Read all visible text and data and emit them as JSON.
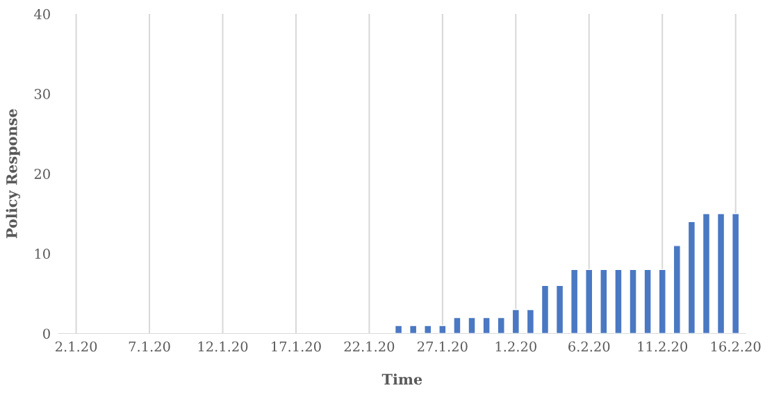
{
  "chart_data": {
    "type": "bar",
    "xlabel": "Time",
    "ylabel": "Policy Response",
    "categories": [
      "2.1.20",
      null,
      null,
      null,
      null,
      "7.1.20",
      null,
      null,
      null,
      null,
      "12.1.20",
      null,
      null,
      null,
      null,
      "17.1.20",
      null,
      null,
      null,
      null,
      "22.1.20",
      null,
      null,
      null,
      null,
      "27.1.20",
      null,
      null,
      null,
      null,
      "1.2.20",
      null,
      null,
      null,
      null,
      "6.2.20",
      null,
      null,
      null,
      null,
      "11.2.20",
      null,
      null,
      null,
      null,
      "16.2.20"
    ],
    "values": [
      null,
      null,
      null,
      null,
      null,
      null,
      null,
      null,
      null,
      null,
      null,
      null,
      null,
      null,
      null,
      null,
      null,
      null,
      null,
      null,
      null,
      null,
      1,
      1,
      1,
      1,
      2,
      2,
      2,
      2,
      3,
      3,
      6,
      6,
      8,
      8,
      8,
      8,
      8,
      8,
      8,
      11,
      14,
      15,
      15,
      15
    ],
    "color": "#4a78c2",
    "ylim": [
      0,
      40
    ],
    "yticks": [
      0,
      10,
      20,
      30,
      40
    ],
    "grid": "x",
    "legend": false
  }
}
